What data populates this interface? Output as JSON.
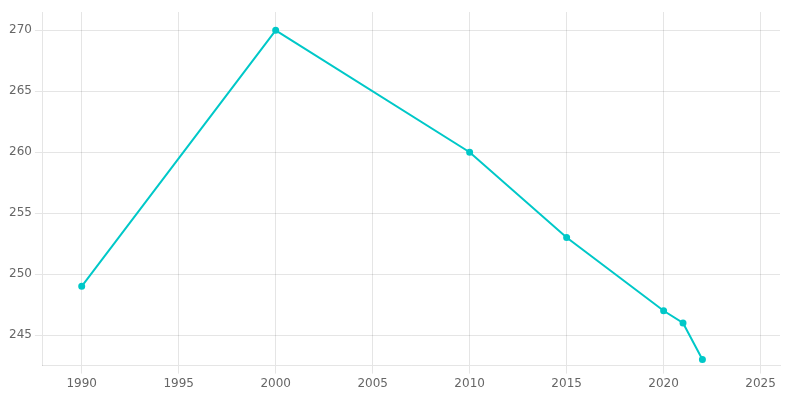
{
  "chart_data": {
    "type": "line",
    "x": [
      1990,
      2000,
      2010,
      2015,
      2020,
      2021,
      2022
    ],
    "values": [
      249,
      270,
      260,
      253,
      247,
      246,
      243
    ],
    "color": "#00C8C8",
    "marker": "circle",
    "xlim": [
      1988,
      2026
    ],
    "ylim": [
      242.5,
      271.5
    ],
    "xticks": [
      1990,
      1995,
      2000,
      2005,
      2010,
      2015,
      2020,
      2025
    ],
    "yticks": [
      245,
      250,
      255,
      260,
      265,
      270
    ],
    "grid": true
  }
}
